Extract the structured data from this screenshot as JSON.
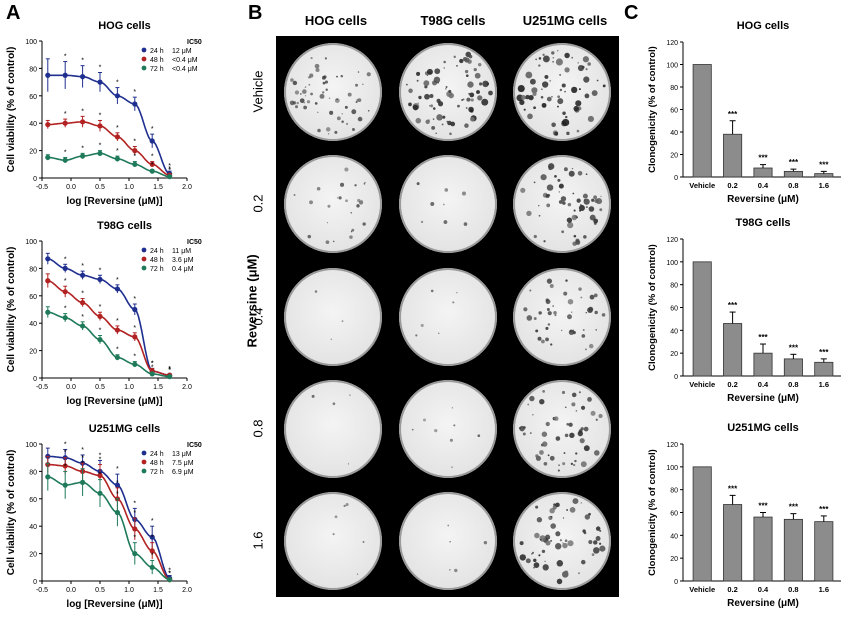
{
  "panel_letters": {
    "a": "A",
    "b": "B",
    "c": "C"
  },
  "panel_b": {
    "columns": [
      "HOG cells",
      "T98G cells",
      "U251MG cells"
    ],
    "rows": [
      "Vehicle",
      "0.2",
      "0.4",
      "0.8",
      "1.6"
    ],
    "y_axis_label": "Reversine (μM)"
  },
  "chart_data": [
    {
      "type": "line",
      "title": "HOG cells",
      "xlabel": "log [Reversine (μM)]",
      "ylabel": "Cell viability (% of control)",
      "xlim": [
        -0.5,
        2.0
      ],
      "ylim": [
        0,
        100
      ],
      "xticks": [
        "-0.5",
        "0.0",
        "0.5",
        "1.0",
        "1.5",
        "2.0"
      ],
      "yticks": [
        "0",
        "20",
        "40",
        "60",
        "80",
        "100"
      ],
      "legend_title": "IC50",
      "x": [
        -0.4,
        -0.1,
        0.2,
        0.5,
        0.8,
        1.1,
        1.4,
        1.7
      ],
      "series": [
        {
          "name": "24 h",
          "ic50": "12 μM",
          "color": "#1f2f8f",
          "values": [
            75,
            75,
            74,
            70,
            60,
            54,
            27,
            3
          ],
          "errors": [
            12,
            10,
            8,
            7,
            6,
            5,
            5,
            2
          ]
        },
        {
          "name": "48 h",
          "ic50": "<0.4 μM",
          "color": "#b22222",
          "values": [
            39,
            40,
            41,
            38,
            30,
            20,
            10,
            2
          ],
          "errors": [
            3,
            3,
            4,
            4,
            3,
            3,
            2,
            1
          ]
        },
        {
          "name": "72 h",
          "ic50": "<0.4 μM",
          "color": "#1f7a5a",
          "values": [
            15,
            13,
            16,
            18,
            14,
            10,
            5,
            1
          ],
          "errors": [
            2,
            2,
            2,
            2,
            2,
            2,
            1,
            1
          ]
        }
      ]
    },
    {
      "type": "line",
      "title": "T98G cells",
      "xlabel": "log [Reversine (μM)]",
      "ylabel": "Cell viability (% of control)",
      "xlim": [
        -0.5,
        2.0
      ],
      "ylim": [
        0,
        100
      ],
      "xticks": [
        "-0.5",
        "0.0",
        "0.5",
        "1.0",
        "1.5",
        "2.0"
      ],
      "yticks": [
        "0",
        "20",
        "40",
        "60",
        "80",
        "100"
      ],
      "legend_title": "IC50",
      "x": [
        -0.4,
        -0.1,
        0.2,
        0.5,
        0.8,
        1.1,
        1.4,
        1.7
      ],
      "series": [
        {
          "name": "24 h",
          "ic50": "11 μM",
          "color": "#1f2f8f",
          "values": [
            87,
            80,
            75,
            72,
            65,
            50,
            5,
            2
          ],
          "errors": [
            4,
            3,
            3,
            3,
            3,
            4,
            2,
            1
          ]
        },
        {
          "name": "48 h",
          "ic50": "3.6 μM",
          "color": "#b22222",
          "values": [
            71,
            63,
            55,
            45,
            35,
            30,
            5,
            2
          ],
          "errors": [
            5,
            4,
            3,
            3,
            3,
            3,
            2,
            1
          ]
        },
        {
          "name": "72 h",
          "ic50": "0.4 μM",
          "color": "#1f7a5a",
          "values": [
            48,
            44,
            38,
            28,
            15,
            10,
            3,
            1
          ],
          "errors": [
            4,
            3,
            3,
            3,
            2,
            2,
            1,
            1
          ]
        }
      ]
    },
    {
      "type": "line",
      "title": "U251MG cells",
      "xlabel": "log [Reversine (μM)]",
      "ylabel": "Cell viability (% of control)",
      "xlim": [
        -0.5,
        2.0
      ],
      "ylim": [
        0,
        100
      ],
      "xticks": [
        "-0.5",
        "0.0",
        "0.5",
        "1.0",
        "1.5",
        "2.0"
      ],
      "yticks": [
        "0",
        "20",
        "40",
        "60",
        "80",
        "100"
      ],
      "legend_title": "IC50",
      "x": [
        -0.4,
        -0.1,
        0.2,
        0.5,
        0.8,
        1.1,
        1.4,
        1.7
      ],
      "series": [
        {
          "name": "24 h",
          "ic50": "13 μM",
          "color": "#1f2f8f",
          "values": [
            91,
            90,
            86,
            80,
            70,
            45,
            32,
            2
          ],
          "errors": [
            6,
            6,
            6,
            8,
            8,
            8,
            8,
            2
          ]
        },
        {
          "name": "48 h",
          "ic50": "7.5 μM",
          "color": "#b22222",
          "values": [
            85,
            84,
            80,
            77,
            60,
            38,
            22,
            1
          ],
          "errors": [
            6,
            6,
            6,
            8,
            8,
            8,
            6,
            1
          ]
        },
        {
          "name": "72 h",
          "ic50": "6.9 μM",
          "color": "#1f7a5a",
          "values": [
            76,
            70,
            72,
            64,
            50,
            20,
            10,
            1
          ],
          "errors": [
            10,
            10,
            10,
            10,
            10,
            8,
            5,
            1
          ]
        }
      ]
    },
    {
      "type": "bar",
      "title": "HOG cells",
      "xlabel": "Reversine (μM)",
      "ylabel": "Clonogenicity (% of control)",
      "ylim": [
        0,
        120
      ],
      "yticks": [
        "0",
        "20",
        "40",
        "60",
        "80",
        "100",
        "120"
      ],
      "categories": [
        "Vehicle",
        "0.2",
        "0.4",
        "0.8",
        "1.6"
      ],
      "values": [
        100,
        38,
        8,
        5,
        3
      ],
      "errors": [
        0,
        12,
        3,
        2,
        2
      ],
      "annotations": [
        "",
        "***",
        "***",
        "***",
        "***"
      ]
    },
    {
      "type": "bar",
      "title": "T98G cells",
      "xlabel": "Reversine (μM)",
      "ylabel": "Clonogenicity (% of control)",
      "ylim": [
        0,
        120
      ],
      "yticks": [
        "0",
        "20",
        "40",
        "60",
        "80",
        "100",
        "120"
      ],
      "categories": [
        "Vehicle",
        "0.2",
        "0.4",
        "0.8",
        "1.6"
      ],
      "values": [
        100,
        46,
        20,
        15,
        12
      ],
      "errors": [
        0,
        10,
        8,
        4,
        3
      ],
      "annotations": [
        "",
        "***",
        "***",
        "***",
        "***"
      ]
    },
    {
      "type": "bar",
      "title": "U251MG cells",
      "xlabel": "Reversine (μM)",
      "ylabel": "Clonogenicity (% of control)",
      "ylim": [
        0,
        120
      ],
      "yticks": [
        "0",
        "20",
        "40",
        "60",
        "80",
        "100",
        "120"
      ],
      "categories": [
        "Vehicle",
        "0.2",
        "0.4",
        "0.8",
        "1.6"
      ],
      "values": [
        100,
        67,
        56,
        54,
        52
      ],
      "errors": [
        0,
        8,
        4,
        5,
        5
      ],
      "annotations": [
        "",
        "***",
        "***",
        "***",
        "***"
      ]
    }
  ]
}
